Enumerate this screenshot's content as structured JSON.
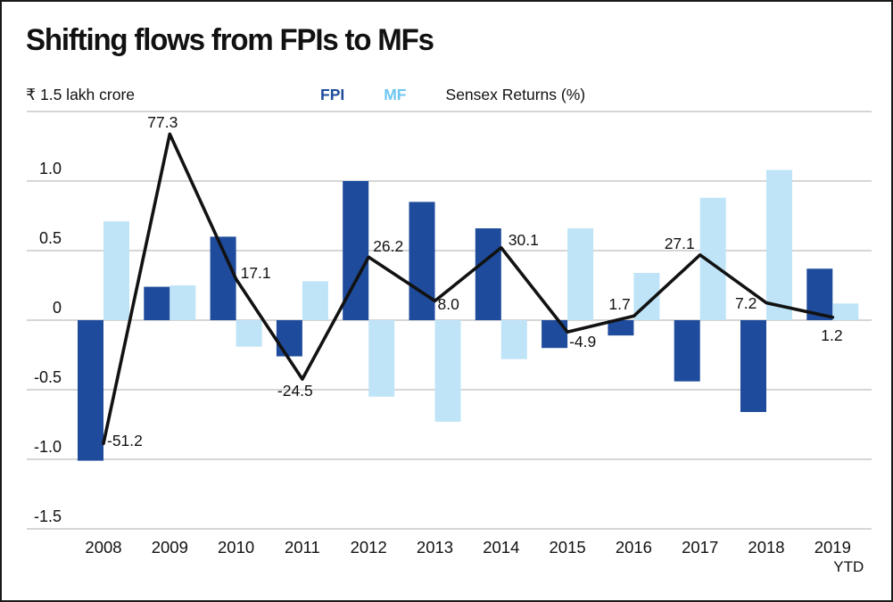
{
  "title": "Shifting flows from FPIs to MFs",
  "unit_label": "₹ 1.5 lakh crore",
  "legend": {
    "fpi": "FPI",
    "mf": "MF",
    "sensex": "Sensex Returns (%)"
  },
  "colors": {
    "fpi_bar": "#1e4b9b",
    "mf_bar": "#bfe4f8",
    "fpi_legend_text": "#1e4b9b",
    "mf_legend_text": "#6ec6f0",
    "sensex_line": "#121212",
    "gridline": "#c9c9c9",
    "text": "#111111"
  },
  "chart_data": {
    "type": "bar",
    "subtype": "grouped bars with line overlay",
    "title": "Shifting flows from FPIs to MFs",
    "unit": "₹ 1.5 lakh crore",
    "categories": [
      "2008",
      "2009",
      "2010",
      "2011",
      "2012",
      "2013",
      "2014",
      "2015",
      "2016",
      "2017",
      "2018",
      "2019\nYTD"
    ],
    "series": [
      {
        "name": "FPI",
        "kind": "bar",
        "values": [
          -1.01,
          0.24,
          0.6,
          -0.26,
          1.0,
          0.85,
          0.66,
          -0.2,
          -0.11,
          -0.44,
          -0.66,
          0.37
        ]
      },
      {
        "name": "MF",
        "kind": "bar",
        "values": [
          0.71,
          0.25,
          -0.19,
          0.28,
          -0.55,
          -0.73,
          -0.28,
          0.66,
          0.34,
          0.88,
          1.08,
          0.12
        ]
      },
      {
        "name": "Sensex Returns (%)",
        "kind": "line",
        "values": [
          -51.2,
          77.3,
          17.1,
          -24.5,
          26.2,
          8.0,
          30.1,
          -4.9,
          1.7,
          27.1,
          7.2,
          1.2
        ]
      }
    ],
    "bar_axis": {
      "ticks": [
        "1.0",
        "0.5",
        "0",
        "-0.5",
        "-1.0",
        "-1.5"
      ],
      "tick_values": [
        1.0,
        0.5,
        0,
        -0.5,
        -1.0,
        -1.5
      ],
      "ylim": [
        -1.5,
        1.5
      ],
      "top_tick_label": "₹ 1.5 lakh crore"
    },
    "grid": "horizontal",
    "legend_position": "top"
  }
}
